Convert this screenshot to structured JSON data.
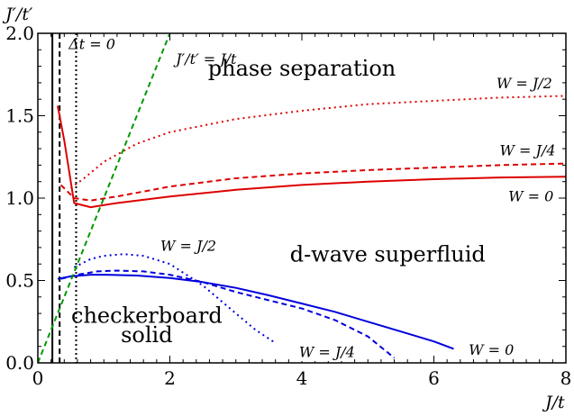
{
  "chart_data": {
    "type": "line",
    "xlabel": "J/t",
    "ylabel": "J′/t′",
    "xlim": [
      0,
      8
    ],
    "ylim": [
      0,
      2
    ],
    "x_ticks": [
      "0",
      "2",
      "4",
      "6",
      "8"
    ],
    "y_ticks": [
      "0.0",
      "0.5",
      "1.0",
      "1.5",
      "2.0"
    ],
    "x_tick_values": [
      0,
      2,
      4,
      6,
      8
    ],
    "y_tick_values": [
      0,
      0.5,
      1,
      1.5,
      2
    ],
    "grid": false,
    "regions": [
      {
        "id": "phase-separation",
        "text": "phase separation",
        "x": 4.0,
        "y": 1.78
      },
      {
        "id": "d-wave-superfluid",
        "text": "d-wave superfluid",
        "x": 5.3,
        "y": 0.65
      },
      {
        "id": "checkerboard",
        "text": "checkerboard",
        "x": 1.65,
        "y": 0.28
      },
      {
        "id": "solid",
        "text": "solid",
        "x": 1.65,
        "y": 0.16
      }
    ],
    "series": [
      {
        "id": "upper-w0",
        "color": "#dd0000",
        "dash": "solid",
        "label": "W = 0",
        "label_x": 7.47,
        "label_y": 1.005,
        "x": [
          0.3,
          0.4,
          0.55,
          0.8,
          1.2,
          2,
          3,
          4,
          5,
          6,
          7,
          8
        ],
        "y": [
          1.56,
          1.35,
          0.97,
          0.945,
          0.97,
          1.01,
          1.05,
          1.08,
          1.1,
          1.115,
          1.125,
          1.13
        ]
      },
      {
        "id": "upper-wq",
        "color": "#dd0000",
        "dash": "6,4",
        "label": "W = J/4",
        "label_x": 7.42,
        "label_y": 1.285,
        "x": [
          0.35,
          0.55,
          0.8,
          1.2,
          2,
          3,
          4,
          5,
          6,
          7,
          8
        ],
        "y": [
          1.08,
          1.0,
          0.985,
          1.01,
          1.07,
          1.12,
          1.15,
          1.17,
          1.185,
          1.2,
          1.21
        ]
      },
      {
        "id": "upper-wh",
        "color": "#dd0000",
        "dash": "2,4",
        "label": "W = J/2",
        "label_x": 7.37,
        "label_y": 1.69,
        "x": [
          0.5,
          0.7,
          1,
          1.5,
          2,
          3,
          4,
          5,
          6,
          7,
          8
        ],
        "y": [
          1.06,
          1.12,
          1.22,
          1.33,
          1.4,
          1.48,
          1.53,
          1.57,
          1.59,
          1.61,
          1.62
        ]
      },
      {
        "id": "lower-w0",
        "color": "#0000dd",
        "dash": "solid",
        "label": "W = 0",
        "label_x": 6.87,
        "label_y": 0.075,
        "x": [
          0.3,
          0.5,
          0.8,
          1,
          1.5,
          2,
          2.5,
          3,
          3.5,
          4,
          4.5,
          5,
          5.5,
          6,
          6.3
        ],
        "y": [
          0.51,
          0.525,
          0.535,
          0.535,
          0.53,
          0.515,
          0.49,
          0.455,
          0.41,
          0.36,
          0.31,
          0.25,
          0.19,
          0.13,
          0.085
        ]
      },
      {
        "id": "lower-wq",
        "color": "#0000dd",
        "dash": "6,4",
        "label": "W = J/4",
        "label_x": 4.38,
        "label_y": 0.06,
        "x": [
          0.35,
          0.6,
          0.9,
          1.2,
          1.6,
          2,
          2.5,
          3,
          3.5,
          4,
          4.5,
          5,
          5.4
        ],
        "y": [
          0.51,
          0.535,
          0.555,
          0.56,
          0.555,
          0.535,
          0.49,
          0.43,
          0.38,
          0.33,
          0.26,
          0.16,
          0.03
        ]
      },
      {
        "id": "lower-wh",
        "color": "#0000dd",
        "dash": "2,4",
        "label": "W = J/2",
        "label_x": 2.28,
        "label_y": 0.705,
        "x": [
          0.55,
          0.8,
          1,
          1.3,
          1.6,
          2,
          2.5,
          3,
          3.3,
          3.6
        ],
        "y": [
          0.58,
          0.63,
          0.65,
          0.66,
          0.65,
          0.6,
          0.47,
          0.3,
          0.2,
          0.12
        ]
      },
      {
        "id": "line-jtt",
        "color": "#009900",
        "dash": "6,4",
        "label": "J′/t′ = J/t",
        "label_x": 2.55,
        "label_y": 1.84,
        "x": [
          0,
          2
        ],
        "y": [
          0,
          2
        ]
      }
    ],
    "vertical_lines": [
      {
        "id": "vline-solid",
        "x": 0.22,
        "dash": "solid"
      },
      {
        "id": "vline-dash",
        "x": 0.33,
        "dash": "6,4",
        "label": "Δt = 0"
      },
      {
        "id": "vline-dot",
        "x": 0.58,
        "dash": "2,3"
      }
    ],
    "vline_label": {
      "text": "Δt = 0",
      "x": 0.82,
      "y": 1.93
    }
  }
}
